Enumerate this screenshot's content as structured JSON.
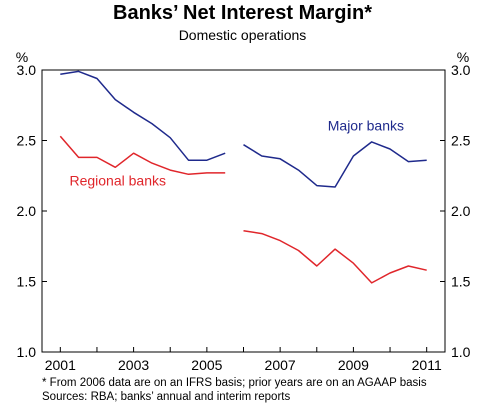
{
  "chart_data": {
    "type": "line",
    "title": "Banks’ Net Interest Margin*",
    "subtitle": "Domestic operations",
    "ylabel_left": "%",
    "ylabel_right": "%",
    "ylim": [
      1.0,
      3.0
    ],
    "yticks": [
      "1.0",
      "1.5",
      "2.0",
      "2.5",
      "3.0"
    ],
    "xlim": [
      2000.5,
      2011.5
    ],
    "xticks": [
      "2001",
      "2003",
      "2005",
      "2007",
      "2009",
      "2011"
    ],
    "grid": false,
    "series": [
      {
        "name": "Major banks",
        "color": "#1f2a8c",
        "segments": [
          [
            [
              2001.0,
              2.97
            ],
            [
              2001.5,
              2.99
            ],
            [
              2002.0,
              2.94
            ],
            [
              2002.5,
              2.79
            ],
            [
              2003.0,
              2.7
            ],
            [
              2003.5,
              2.62
            ],
            [
              2004.0,
              2.52
            ],
            [
              2004.5,
              2.36
            ],
            [
              2005.0,
              2.36
            ],
            [
              2005.5,
              2.41
            ]
          ],
          [
            [
              2006.0,
              2.47
            ],
            [
              2006.5,
              2.39
            ],
            [
              2007.0,
              2.37
            ],
            [
              2007.5,
              2.29
            ],
            [
              2008.0,
              2.18
            ],
            [
              2008.5,
              2.17
            ],
            [
              2009.0,
              2.39
            ],
            [
              2009.5,
              2.49
            ],
            [
              2010.0,
              2.44
            ],
            [
              2010.5,
              2.35
            ],
            [
              2011.0,
              2.36
            ]
          ]
        ]
      },
      {
        "name": "Regional banks",
        "color": "#e0262b",
        "segments": [
          [
            [
              2001.0,
              2.53
            ],
            [
              2001.5,
              2.38
            ],
            [
              2002.0,
              2.38
            ],
            [
              2002.5,
              2.31
            ],
            [
              2003.0,
              2.41
            ],
            [
              2003.5,
              2.34
            ],
            [
              2004.0,
              2.29
            ],
            [
              2004.5,
              2.26
            ],
            [
              2005.0,
              2.27
            ],
            [
              2005.5,
              2.27
            ]
          ],
          [
            [
              2006.0,
              1.86
            ],
            [
              2006.5,
              1.84
            ],
            [
              2007.0,
              1.79
            ],
            [
              2007.5,
              1.72
            ],
            [
              2008.0,
              1.61
            ],
            [
              2008.5,
              1.73
            ],
            [
              2009.0,
              1.63
            ],
            [
              2009.5,
              1.49
            ],
            [
              2010.0,
              1.56
            ],
            [
              2010.5,
              1.61
            ],
            [
              2011.0,
              1.58
            ]
          ]
        ]
      }
    ],
    "annotations": [
      {
        "text": "Major banks",
        "series": "Major banks"
      },
      {
        "text": "Regional banks",
        "series": "Regional banks"
      }
    ],
    "footnotes": [
      "*  From 2006 data are on an IFRS basis; prior years are on an AGAAP basis",
      "Sources: RBA; banks’ annual and interim reports"
    ]
  }
}
